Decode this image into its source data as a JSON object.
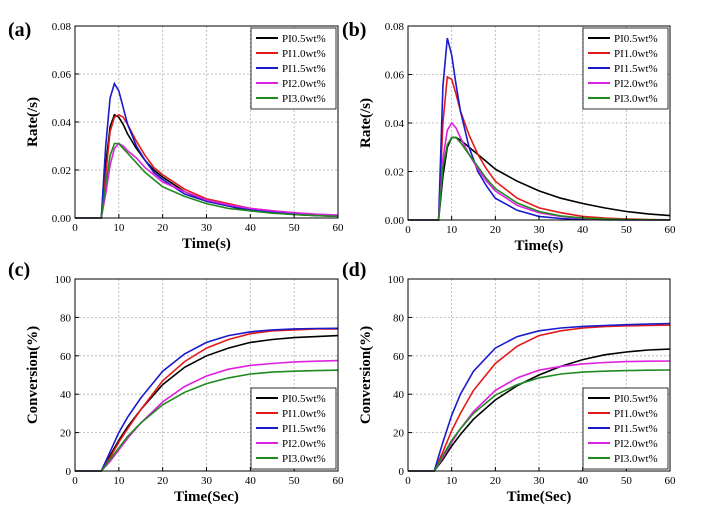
{
  "chart_data": [
    {
      "panel": "(a)",
      "type": "line",
      "xlabel": "Time(s)",
      "ylabel": "Rate(/s)",
      "xlim": [
        0,
        60
      ],
      "ylim": [
        0,
        0.08
      ],
      "xticks": [
        "0",
        "10",
        "20",
        "30",
        "40",
        "50",
        "60"
      ],
      "yticks": [
        "0.00",
        "0.02",
        "0.04",
        "0.06",
        "0.08"
      ],
      "grid": true,
      "legend": "top-right",
      "x": [
        0,
        5,
        6,
        7,
        8,
        9,
        10,
        11,
        12,
        14,
        16,
        18,
        20,
        25,
        30,
        35,
        40,
        45,
        50,
        55,
        60
      ],
      "series": [
        {
          "name": "PI0.5wt%",
          "color": "#000000",
          "values": [
            0,
            0,
            0,
            0.022,
            0.038,
            0.043,
            0.042,
            0.039,
            0.035,
            0.029,
            0.024,
            0.02,
            0.017,
            0.011,
            0.007,
            0.005,
            0.003,
            0.0022,
            0.0015,
            0.001,
            0.0007
          ]
        },
        {
          "name": "PI1.0wt%",
          "color": "#e41a1a",
          "values": [
            0,
            0,
            0,
            0.018,
            0.036,
            0.042,
            0.043,
            0.042,
            0.039,
            0.032,
            0.026,
            0.021,
            0.018,
            0.012,
            0.008,
            0.006,
            0.004,
            0.003,
            0.002,
            0.0014,
            0.001
          ]
        },
        {
          "name": "PI1.5wt%",
          "color": "#1a1acd",
          "values": [
            0,
            0,
            0,
            0.03,
            0.05,
            0.056,
            0.053,
            0.046,
            0.039,
            0.03,
            0.024,
            0.019,
            0.016,
            0.01,
            0.007,
            0.005,
            0.0035,
            0.0025,
            0.0018,
            0.0012,
            0.0008
          ]
        },
        {
          "name": "PI2.0wt%",
          "color": "#e020e0",
          "values": [
            0,
            0,
            0,
            0.01,
            0.022,
            0.029,
            0.031,
            0.03,
            0.028,
            0.025,
            0.021,
            0.018,
            0.015,
            0.011,
            0.0075,
            0.0055,
            0.004,
            0.003,
            0.0022,
            0.0016,
            0.0012
          ]
        },
        {
          "name": "PI3.0wt%",
          "color": "#1f8a1f",
          "values": [
            0,
            0,
            0,
            0.014,
            0.026,
            0.031,
            0.031,
            0.029,
            0.027,
            0.023,
            0.019,
            0.016,
            0.013,
            0.009,
            0.006,
            0.004,
            0.003,
            0.002,
            0.0014,
            0.001,
            0.0007
          ]
        }
      ]
    },
    {
      "panel": "(b)",
      "type": "line",
      "xlabel": "Time(s)",
      "ylabel": "Rate(/s)",
      "xlim": [
        0,
        60
      ],
      "ylim": [
        0,
        0.08
      ],
      "xticks": [
        "0",
        "10",
        "20",
        "30",
        "40",
        "50",
        "60"
      ],
      "yticks": [
        "0.00",
        "0.02",
        "0.04",
        "0.06",
        "0.08"
      ],
      "grid": true,
      "legend": "top-right",
      "x": [
        0,
        5,
        6,
        7,
        8,
        9,
        10,
        11,
        12,
        14,
        16,
        18,
        20,
        25,
        30,
        35,
        40,
        45,
        50,
        55,
        60
      ],
      "series": [
        {
          "name": "PI0.5wt%",
          "color": "#000000",
          "values": [
            0,
            0,
            0,
            0,
            0.018,
            0.03,
            0.034,
            0.034,
            0.033,
            0.03,
            0.027,
            0.024,
            0.021,
            0.016,
            0.012,
            0.009,
            0.0068,
            0.005,
            0.0035,
            0.0025,
            0.0018
          ]
        },
        {
          "name": "PI1.0wt%",
          "color": "#e41a1a",
          "values": [
            0,
            0,
            0,
            0,
            0.04,
            0.059,
            0.058,
            0.052,
            0.045,
            0.035,
            0.027,
            0.021,
            0.016,
            0.009,
            0.005,
            0.003,
            0.0015,
            0.0008,
            0.0004,
            0.0002,
            0.0001
          ]
        },
        {
          "name": "PI1.5wt%",
          "color": "#1a1acd",
          "values": [
            0,
            0,
            0,
            0,
            0.055,
            0.075,
            0.068,
            0.056,
            0.045,
            0.03,
            0.02,
            0.014,
            0.009,
            0.004,
            0.0015,
            0.0006,
            0.0002,
            0.0001,
            0,
            0,
            0
          ]
        },
        {
          "name": "PI2.0wt%",
          "color": "#e020e0",
          "values": [
            0,
            0,
            0,
            0,
            0.025,
            0.037,
            0.04,
            0.038,
            0.034,
            0.027,
            0.021,
            0.016,
            0.012,
            0.006,
            0.003,
            0.0015,
            0.0007,
            0.0003,
            0.0001,
            0,
            0
          ]
        },
        {
          "name": "PI3.0wt%",
          "color": "#1f8a1f",
          "values": [
            0,
            0,
            0,
            0,
            0.022,
            0.031,
            0.034,
            0.034,
            0.032,
            0.027,
            0.022,
            0.017,
            0.013,
            0.007,
            0.0035,
            0.0017,
            0.0008,
            0.0004,
            0.0002,
            0.0001,
            0
          ]
        }
      ]
    },
    {
      "panel": "(c)",
      "type": "line",
      "xlabel": "Time(Sec)",
      "ylabel": "Conversion(%)",
      "xlim": [
        0,
        60
      ],
      "ylim": [
        0,
        100
      ],
      "xticks": [
        "0",
        "10",
        "20",
        "30",
        "40",
        "50",
        "60"
      ],
      "yticks": [
        "0",
        "20",
        "40",
        "60",
        "80",
        "100"
      ],
      "grid": true,
      "legend": "bottom-right",
      "x": [
        0,
        6,
        8,
        10,
        12,
        15,
        20,
        25,
        30,
        35,
        40,
        45,
        50,
        55,
        60
      ],
      "series": [
        {
          "name": "PI0.5wt%",
          "color": "#000000",
          "values": [
            0,
            0,
            8,
            16,
            23,
            32,
            45,
            54,
            60,
            64,
            67,
            68.5,
            69.5,
            70,
            70.5
          ]
        },
        {
          "name": "PI1.0wt%",
          "color": "#e41a1a",
          "values": [
            0,
            0,
            7,
            15,
            22,
            32,
            47,
            57,
            64,
            68.5,
            71.5,
            73,
            73.5,
            74,
            74
          ]
        },
        {
          "name": "PI1.5wt%",
          "color": "#1a1acd",
          "values": [
            0,
            0,
            10,
            20,
            28,
            38,
            52,
            61,
            67,
            70.5,
            72.5,
            73.5,
            74,
            74.2,
            74.3
          ]
        },
        {
          "name": "PI2.0wt%",
          "color": "#e020e0",
          "values": [
            0,
            0,
            5,
            11,
            17,
            25,
            36,
            44,
            49.5,
            53,
            55,
            56,
            56.8,
            57.2,
            57.5
          ]
        },
        {
          "name": "PI3.0wt%",
          "color": "#1f8a1f",
          "values": [
            0,
            0,
            6,
            12,
            18,
            25,
            34.5,
            41,
            45.5,
            48.5,
            50.5,
            51.5,
            52,
            52.3,
            52.5
          ]
        }
      ]
    },
    {
      "panel": "(d)",
      "type": "line",
      "xlabel": "Time(Sec)",
      "ylabel": "Conversion(%)",
      "xlim": [
        0,
        60
      ],
      "ylim": [
        0,
        100
      ],
      "xticks": [
        "0",
        "10",
        "20",
        "30",
        "40",
        "50",
        "60"
      ],
      "yticks": [
        "0",
        "20",
        "40",
        "60",
        "80",
        "100"
      ],
      "grid": true,
      "legend": "bottom-right",
      "x": [
        0,
        6,
        8,
        10,
        12,
        15,
        20,
        25,
        30,
        35,
        40,
        45,
        50,
        55,
        60
      ],
      "series": [
        {
          "name": "PI0.5wt%",
          "color": "#000000",
          "values": [
            0,
            0,
            6,
            13,
            19,
            27,
            37,
            44.5,
            50,
            54.5,
            58,
            60.5,
            62,
            63,
            63.5
          ]
        },
        {
          "name": "PI1.0wt%",
          "color": "#e41a1a",
          "values": [
            0,
            0,
            10,
            21,
            30,
            42,
            56,
            65,
            70.5,
            73,
            74.5,
            75.2,
            75.6,
            75.8,
            76
          ]
        },
        {
          "name": "PI1.5wt%",
          "color": "#1a1acd",
          "values": [
            0,
            0,
            15,
            29,
            40,
            52,
            64,
            70,
            73,
            74.5,
            75.3,
            75.8,
            76.2,
            76.5,
            76.8
          ]
        },
        {
          "name": "PI2.0wt%",
          "color": "#e020e0",
          "values": [
            0,
            0,
            7,
            15,
            22,
            31,
            42,
            48.5,
            52.5,
            54.5,
            55.8,
            56.5,
            57,
            57.2,
            57.3
          ]
        },
        {
          "name": "PI3.0wt%",
          "color": "#1f8a1f",
          "values": [
            0,
            0,
            8,
            16,
            22,
            30,
            39.5,
            45,
            48.5,
            50.5,
            51.5,
            52,
            52.3,
            52.5,
            52.6
          ]
        }
      ]
    }
  ]
}
